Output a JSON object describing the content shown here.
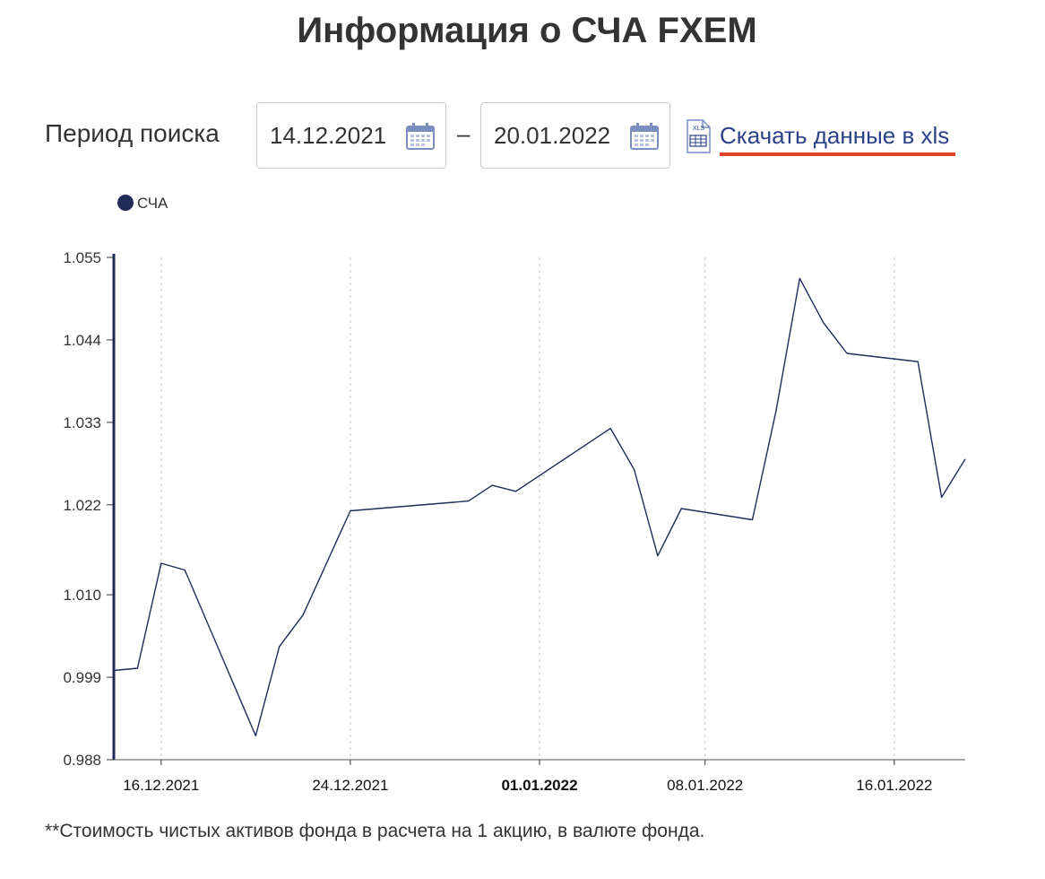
{
  "page": {
    "title": "Информация о СЧА FXEM",
    "period_label": "Период поиска",
    "date_from": "14.12.2021",
    "date_separator": "–",
    "date_to": "20.01.2022",
    "download_link": "Скачать данные в xls",
    "xls_icon_text": "XLS",
    "footnote": "**Стоимость чистых активов фонда в расчета на 1 акцию, в валюте фонда.",
    "colors": {
      "line": "#1e2c57",
      "link": "#2b4288",
      "link_underline": "#e2412a",
      "grid": "#cccccc",
      "icon": "#7a8fbf"
    }
  },
  "chart_data": {
    "type": "line",
    "legend": [
      "СЧА"
    ],
    "legend_position": "top-left",
    "series": [
      {
        "name": "СЧА",
        "points": [
          {
            "x": "14.12.2021",
            "y": 0.9999
          },
          {
            "x": "15.12.2021",
            "y": 1.0002
          },
          {
            "x": "16.12.2021",
            "y": 1.0142
          },
          {
            "x": "17.12.2021",
            "y": 1.0133
          },
          {
            "x": "20.12.2021",
            "y": 0.9912
          },
          {
            "x": "21.12.2021",
            "y": 1.0031
          },
          {
            "x": "22.12.2021",
            "y": 1.0073
          },
          {
            "x": "24.12.2021",
            "y": 1.0212
          },
          {
            "x": "29.12.2021",
            "y": 1.0225
          },
          {
            "x": "30.12.2021",
            "y": 1.0246
          },
          {
            "x": "31.12.2021",
            "y": 1.0238
          },
          {
            "x": "04.01.2022",
            "y": 1.0322
          },
          {
            "x": "05.01.2022",
            "y": 1.0267
          },
          {
            "x": "06.01.2022",
            "y": 1.0152
          },
          {
            "x": "07.01.2022",
            "y": 1.0215
          },
          {
            "x": "10.01.2022",
            "y": 1.02
          },
          {
            "x": "11.01.2022",
            "y": 1.0345
          },
          {
            "x": "12.01.2022",
            "y": 1.0522
          },
          {
            "x": "13.01.2022",
            "y": 1.0463
          },
          {
            "x": "14.01.2022",
            "y": 1.0422
          },
          {
            "x": "17.01.2022",
            "y": 1.0411
          },
          {
            "x": "18.01.2022",
            "y": 1.023
          },
          {
            "x": "19.01.2022",
            "y": 1.0281
          }
        ]
      }
    ],
    "x_ticks": [
      "16.12.2021",
      "24.12.2021",
      "01.01.2022",
      "08.01.2022",
      "16.01.2022"
    ],
    "x_tick_bold": "01.01.2022",
    "x_range": [
      "14.12.2021",
      "19.01.2022"
    ],
    "y_ticks": [
      "0.988",
      "0.999",
      "1.010",
      "1.022",
      "1.033",
      "1.044",
      "1.055"
    ],
    "ylim": [
      0.988,
      1.055
    ],
    "grid": "vertical dashed"
  }
}
